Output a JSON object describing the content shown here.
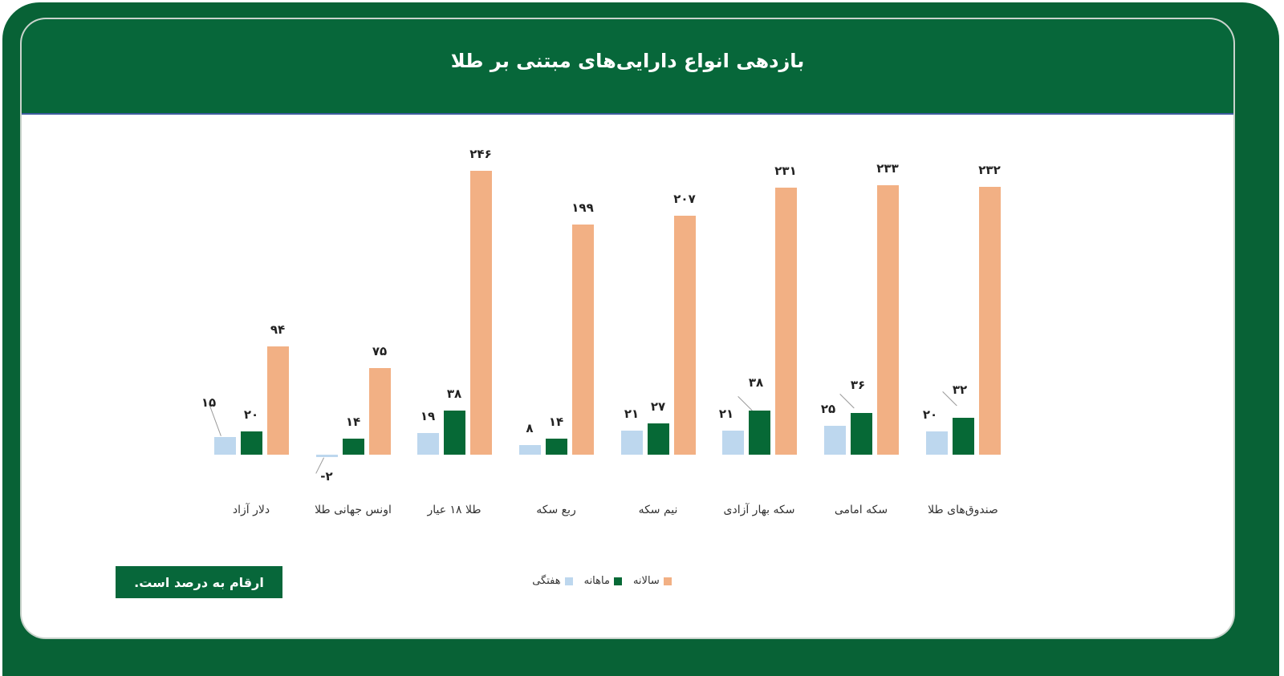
{
  "title": "بازدهی انواع دارایی‌های مبتنی بر طلا",
  "note": "ارقام به درصد است.",
  "colors": {
    "frame": "#086236",
    "header": "#07673a",
    "weekly": "#bdd7ee",
    "monthly": "#066936",
    "yearly": "#f2b084"
  },
  "legend": [
    {
      "key": "yearly",
      "label": "سالانه"
    },
    {
      "key": "monthly",
      "label": "ماهانه"
    },
    {
      "key": "weekly",
      "label": "هفتگی"
    }
  ],
  "chart_data": {
    "type": "bar",
    "title": "بازدهی انواع دارایی‌های مبتنی بر طلا",
    "xlabel": "",
    "ylabel": "",
    "unit_note": "ارقام به درصد است.",
    "grid": false,
    "legend_position": "bottom",
    "ylim": [
      -5,
      250
    ],
    "categories": [
      "دلار آزاد",
      "اونس جهانی طلا",
      "طلا ۱۸ عیار",
      "ربع سکه",
      "نیم سکه",
      "سکه بهار آزادی",
      "سکه امامی",
      "صندوق‌های طلا"
    ],
    "series": [
      {
        "name": "هفتگی",
        "key": "weekly",
        "values": [
          15,
          -2,
          19,
          8,
          21,
          21,
          25,
          20
        ],
        "labels": [
          "۱۵",
          "-۲",
          "۱۹",
          "۸",
          "۲۱",
          "۲۱",
          "۲۵",
          "۲۰"
        ]
      },
      {
        "name": "ماهانه",
        "key": "monthly",
        "values": [
          20,
          14,
          38,
          14,
          27,
          38,
          36,
          32
        ],
        "labels": [
          "۲۰",
          "۱۴",
          "۳۸",
          "۱۴",
          "۲۷",
          "۳۸",
          "۳۶",
          "۳۲"
        ]
      },
      {
        "name": "سالانه",
        "key": "yearly",
        "values": [
          94,
          75,
          246,
          199,
          207,
          231,
          233,
          232
        ],
        "labels": [
          "۹۴",
          "۷۵",
          "۲۴۶",
          "۱۹۹",
          "۲۰۷",
          "۲۳۱",
          "۲۳۳",
          "۲۳۲"
        ]
      }
    ]
  }
}
